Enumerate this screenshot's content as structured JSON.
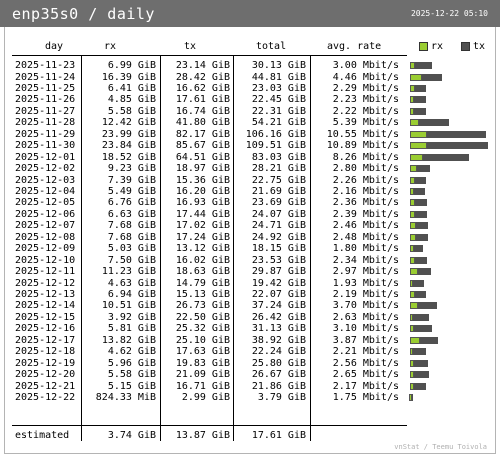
{
  "header": {
    "title": "enp35s0 / daily",
    "timestamp": "2025-12-22 05:10"
  },
  "columns": {
    "day": "day",
    "rx": "rx",
    "tx": "tx",
    "total": "total",
    "avg_rate": "avg. rate"
  },
  "legend": {
    "rx_label": "rx",
    "tx_label": "tx",
    "rx_color": "#9acd32",
    "tx_color": "#505050"
  },
  "rows": [
    {
      "day": "2025-11-23",
      "rx": "6.99 GiB",
      "tx": "23.14 GiB",
      "total": "30.13 GiB",
      "rate": "3.00 Mbit/s",
      "rx_gib": 6.99,
      "tx_gib": 23.14
    },
    {
      "day": "2025-11-24",
      "rx": "16.39 GiB",
      "tx": "28.42 GiB",
      "total": "44.81 GiB",
      "rate": "4.46 Mbit/s",
      "rx_gib": 16.39,
      "tx_gib": 28.42
    },
    {
      "day": "2025-11-25",
      "rx": "6.41 GiB",
      "tx": "16.62 GiB",
      "total": "23.03 GiB",
      "rate": "2.29 Mbit/s",
      "rx_gib": 6.41,
      "tx_gib": 16.62
    },
    {
      "day": "2025-11-26",
      "rx": "4.85 GiB",
      "tx": "17.61 GiB",
      "total": "22.45 GiB",
      "rate": "2.23 Mbit/s",
      "rx_gib": 4.85,
      "tx_gib": 17.61
    },
    {
      "day": "2025-11-27",
      "rx": "5.58 GiB",
      "tx": "16.74 GiB",
      "total": "22.31 GiB",
      "rate": "2.22 Mbit/s",
      "rx_gib": 5.58,
      "tx_gib": 16.74
    },
    {
      "day": "2025-11-28",
      "rx": "12.42 GiB",
      "tx": "41.80 GiB",
      "total": "54.21 GiB",
      "rate": "5.39 Mbit/s",
      "rx_gib": 12.42,
      "tx_gib": 41.8
    },
    {
      "day": "2025-11-29",
      "rx": "23.99 GiB",
      "tx": "82.17 GiB",
      "total": "106.16 GiB",
      "rate": "10.55 Mbit/s",
      "rx_gib": 23.99,
      "tx_gib": 82.17
    },
    {
      "day": "2025-11-30",
      "rx": "23.84 GiB",
      "tx": "85.67 GiB",
      "total": "109.51 GiB",
      "rate": "10.89 Mbit/s",
      "rx_gib": 23.84,
      "tx_gib": 85.67
    },
    {
      "day": "2025-12-01",
      "rx": "18.52 GiB",
      "tx": "64.51 GiB",
      "total": "83.03 GiB",
      "rate": "8.26 Mbit/s",
      "rx_gib": 18.52,
      "tx_gib": 64.51
    },
    {
      "day": "2025-12-02",
      "rx": "9.23 GiB",
      "tx": "18.97 GiB",
      "total": "28.21 GiB",
      "rate": "2.80 Mbit/s",
      "rx_gib": 9.23,
      "tx_gib": 18.97
    },
    {
      "day": "2025-12-03",
      "rx": "7.39 GiB",
      "tx": "15.36 GiB",
      "total": "22.75 GiB",
      "rate": "2.26 Mbit/s",
      "rx_gib": 7.39,
      "tx_gib": 15.36
    },
    {
      "day": "2025-12-04",
      "rx": "5.49 GiB",
      "tx": "16.20 GiB",
      "total": "21.69 GiB",
      "rate": "2.16 Mbit/s",
      "rx_gib": 5.49,
      "tx_gib": 16.2
    },
    {
      "day": "2025-12-05",
      "rx": "6.76 GiB",
      "tx": "16.93 GiB",
      "total": "23.69 GiB",
      "rate": "2.36 Mbit/s",
      "rx_gib": 6.76,
      "tx_gib": 16.93
    },
    {
      "day": "2025-12-06",
      "rx": "6.63 GiB",
      "tx": "17.44 GiB",
      "total": "24.07 GiB",
      "rate": "2.39 Mbit/s",
      "rx_gib": 6.63,
      "tx_gib": 17.44
    },
    {
      "day": "2025-12-07",
      "rx": "7.68 GiB",
      "tx": "17.02 GiB",
      "total": "24.71 GiB",
      "rate": "2.46 Mbit/s",
      "rx_gib": 7.68,
      "tx_gib": 17.02
    },
    {
      "day": "2025-12-08",
      "rx": "7.68 GiB",
      "tx": "17.24 GiB",
      "total": "24.92 GiB",
      "rate": "2.48 Mbit/s",
      "rx_gib": 7.68,
      "tx_gib": 17.24
    },
    {
      "day": "2025-12-09",
      "rx": "5.03 GiB",
      "tx": "13.12 GiB",
      "total": "18.15 GiB",
      "rate": "1.80 Mbit/s",
      "rx_gib": 5.03,
      "tx_gib": 13.12
    },
    {
      "day": "2025-12-10",
      "rx": "7.50 GiB",
      "tx": "16.02 GiB",
      "total": "23.53 GiB",
      "rate": "2.34 Mbit/s",
      "rx_gib": 7.5,
      "tx_gib": 16.02
    },
    {
      "day": "2025-12-11",
      "rx": "11.23 GiB",
      "tx": "18.63 GiB",
      "total": "29.87 GiB",
      "rate": "2.97 Mbit/s",
      "rx_gib": 11.23,
      "tx_gib": 18.63
    },
    {
      "day": "2025-12-12",
      "rx": "4.63 GiB",
      "tx": "14.79 GiB",
      "total": "19.42 GiB",
      "rate": "1.93 Mbit/s",
      "rx_gib": 4.63,
      "tx_gib": 14.79
    },
    {
      "day": "2025-12-13",
      "rx": "6.94 GiB",
      "tx": "15.13 GiB",
      "total": "22.07 GiB",
      "rate": "2.19 Mbit/s",
      "rx_gib": 6.94,
      "tx_gib": 15.13
    },
    {
      "day": "2025-12-14",
      "rx": "10.51 GiB",
      "tx": "26.73 GiB",
      "total": "37.24 GiB",
      "rate": "3.70 Mbit/s",
      "rx_gib": 10.51,
      "tx_gib": 26.73
    },
    {
      "day": "2025-12-15",
      "rx": "3.92 GiB",
      "tx": "22.50 GiB",
      "total": "26.42 GiB",
      "rate": "2.63 Mbit/s",
      "rx_gib": 3.92,
      "tx_gib": 22.5
    },
    {
      "day": "2025-12-16",
      "rx": "5.81 GiB",
      "tx": "25.32 GiB",
      "total": "31.13 GiB",
      "rate": "3.10 Mbit/s",
      "rx_gib": 5.81,
      "tx_gib": 25.32
    },
    {
      "day": "2025-12-17",
      "rx": "13.82 GiB",
      "tx": "25.10 GiB",
      "total": "38.92 GiB",
      "rate": "3.87 Mbit/s",
      "rx_gib": 13.82,
      "tx_gib": 25.1
    },
    {
      "day": "2025-12-18",
      "rx": "4.62 GiB",
      "tx": "17.63 GiB",
      "total": "22.24 GiB",
      "rate": "2.21 Mbit/s",
      "rx_gib": 4.62,
      "tx_gib": 17.63
    },
    {
      "day": "2025-12-19",
      "rx": "5.96 GiB",
      "tx": "19.83 GiB",
      "total": "25.80 GiB",
      "rate": "2.56 Mbit/s",
      "rx_gib": 5.96,
      "tx_gib": 19.83
    },
    {
      "day": "2025-12-20",
      "rx": "5.58 GiB",
      "tx": "21.09 GiB",
      "total": "26.67 GiB",
      "rate": "2.65 Mbit/s",
      "rx_gib": 5.58,
      "tx_gib": 21.09
    },
    {
      "day": "2025-12-21",
      "rx": "5.15 GiB",
      "tx": "16.71 GiB",
      "total": "21.86 GiB",
      "rate": "2.17 Mbit/s",
      "rx_gib": 5.15,
      "tx_gib": 16.71
    },
    {
      "day": "2025-12-22",
      "rx": "824.33 MiB",
      "tx": "2.99 GiB",
      "total": "3.79 GiB",
      "rate": "1.75 Mbit/s",
      "rx_gib": 0.805,
      "tx_gib": 2.99
    }
  ],
  "estimated": {
    "label": "estimated",
    "rx": "3.74 GiB",
    "tx": "13.87 GiB",
    "total": "17.61 GiB"
  },
  "footer": "vnStat / Teemu Toivola"
}
